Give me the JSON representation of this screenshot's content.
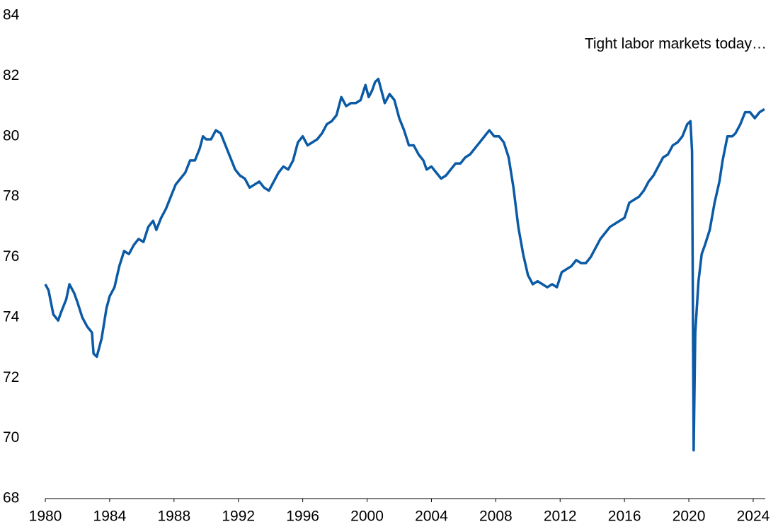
{
  "chart_data": {
    "type": "line",
    "annotation": "Tight labor markets today…",
    "x": [
      1980.0,
      1980.2,
      1980.5,
      1980.8,
      1981.0,
      1981.3,
      1981.5,
      1981.8,
      1982.0,
      1982.3,
      1982.6,
      1982.9,
      1983.0,
      1983.2,
      1983.5,
      1983.8,
      1984.0,
      1984.3,
      1984.6,
      1984.9,
      1985.2,
      1985.5,
      1985.8,
      1986.1,
      1986.4,
      1986.7,
      1986.9,
      1987.2,
      1987.5,
      1987.8,
      1988.1,
      1988.4,
      1988.7,
      1989.0,
      1989.3,
      1989.6,
      1989.8,
      1990.0,
      1990.3,
      1990.6,
      1990.9,
      1991.2,
      1991.5,
      1991.8,
      1992.1,
      1992.4,
      1992.7,
      1993.0,
      1993.3,
      1993.6,
      1993.9,
      1994.2,
      1994.5,
      1994.8,
      1995.1,
      1995.4,
      1995.7,
      1996.0,
      1996.3,
      1996.6,
      1996.9,
      1997.2,
      1997.5,
      1997.8,
      1998.1,
      1998.4,
      1998.7,
      1999.0,
      1999.3,
      1999.6,
      1999.9,
      2000.1,
      2000.3,
      2000.5,
      2000.7,
      2000.9,
      2001.1,
      2001.4,
      2001.7,
      2002.0,
      2002.3,
      2002.6,
      2002.9,
      2003.2,
      2003.5,
      2003.7,
      2004.0,
      2004.3,
      2004.6,
      2004.9,
      2005.2,
      2005.5,
      2005.8,
      2006.1,
      2006.4,
      2006.7,
      2007.0,
      2007.3,
      2007.6,
      2007.9,
      2008.2,
      2008.5,
      2008.8,
      2009.1,
      2009.4,
      2009.7,
      2010.0,
      2010.3,
      2010.6,
      2010.9,
      2011.2,
      2011.5,
      2011.8,
      2012.1,
      2012.4,
      2012.7,
      2013.0,
      2013.3,
      2013.6,
      2013.9,
      2014.2,
      2014.5,
      2014.8,
      2015.1,
      2015.4,
      2015.7,
      2016.0,
      2016.3,
      2016.6,
      2016.9,
      2017.2,
      2017.5,
      2017.8,
      2018.1,
      2018.4,
      2018.7,
      2019.0,
      2019.3,
      2019.6,
      2019.9,
      2020.1,
      2020.2,
      2020.3,
      2020.4,
      2020.6,
      2020.8,
      2021.0,
      2021.3,
      2021.6,
      2021.9,
      2022.1,
      2022.4,
      2022.7,
      2022.9,
      2023.2,
      2023.5,
      2023.8,
      2024.1,
      2024.4,
      2024.7
    ],
    "series": [
      {
        "color": "#0b5aa5",
        "values": [
          75.1,
          74.9,
          74.1,
          73.9,
          74.2,
          74.6,
          75.1,
          74.8,
          74.5,
          74.0,
          73.7,
          73.5,
          72.8,
          72.7,
          73.3,
          74.3,
          74.7,
          75.0,
          75.7,
          76.2,
          76.1,
          76.4,
          76.6,
          76.5,
          77.0,
          77.2,
          76.9,
          77.3,
          77.6,
          78.0,
          78.4,
          78.6,
          78.8,
          79.2,
          79.2,
          79.6,
          80.0,
          79.9,
          79.9,
          80.2,
          80.1,
          79.7,
          79.3,
          78.9,
          78.7,
          78.6,
          78.3,
          78.4,
          78.5,
          78.3,
          78.2,
          78.5,
          78.8,
          79.0,
          78.9,
          79.2,
          79.8,
          80.0,
          79.7,
          79.8,
          79.9,
          80.1,
          80.4,
          80.5,
          80.7,
          81.3,
          81.0,
          81.1,
          81.1,
          81.2,
          81.7,
          81.3,
          81.5,
          81.8,
          81.9,
          81.5,
          81.1,
          81.4,
          81.2,
          80.6,
          80.2,
          79.7,
          79.7,
          79.4,
          79.2,
          78.9,
          79.0,
          78.8,
          78.6,
          78.7,
          78.9,
          79.1,
          79.1,
          79.3,
          79.4,
          79.6,
          79.8,
          80.0,
          80.2,
          80.0,
          80.0,
          79.8,
          79.3,
          78.3,
          77.0,
          76.1,
          75.4,
          75.1,
          75.2,
          75.1,
          75.0,
          75.1,
          75.0,
          75.5,
          75.6,
          75.7,
          75.9,
          75.8,
          75.8,
          76.0,
          76.3,
          76.6,
          76.8,
          77.0,
          77.1,
          77.2,
          77.3,
          77.8,
          77.9,
          78.0,
          78.2,
          78.5,
          78.7,
          79.0,
          79.3,
          79.4,
          79.7,
          79.8,
          80.0,
          80.4,
          80.5,
          79.5,
          69.6,
          73.5,
          75.2,
          76.1,
          76.4,
          76.9,
          77.8,
          78.5,
          79.2,
          80.0,
          80.0,
          80.1,
          80.4,
          80.8,
          80.8,
          80.6,
          80.8,
          80.9
        ]
      }
    ],
    "xlim": [
      1980,
      2024.75
    ],
    "xticks": [
      1980,
      1984,
      1988,
      1992,
      1996,
      2000,
      2004,
      2008,
      2012,
      2016,
      2020,
      2024
    ],
    "ylim": [
      68,
      84
    ],
    "yticks": [
      68,
      70,
      72,
      74,
      76,
      78,
      80,
      82,
      84
    ]
  }
}
